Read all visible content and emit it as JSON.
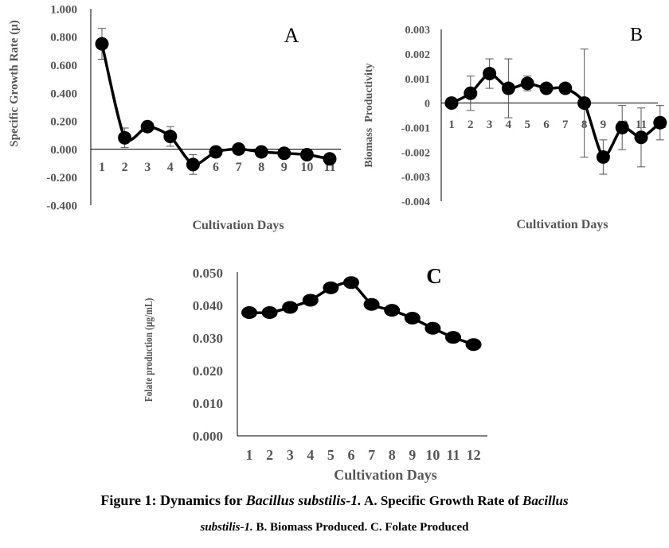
{
  "caption": {
    "prefix": "Figure 1: Dynamics for ",
    "organism": "Bacillus substilis-1.",
    "part_a": " A. Specific Growth Rate of ",
    "organism_line1": "Bacillus",
    "organism_line2": "substilis-1.",
    "part_bc": " B. Biomass Produced. C. Folate Produced"
  },
  "chart_data": [
    {
      "panel": "A",
      "type": "line",
      "title": "",
      "xlabel": "Cultivation Days",
      "ylabel": "Specific Growth Rate (μ)",
      "ylim": [
        -0.4,
        1.0
      ],
      "y_ticks": [
        "1.000",
        "0.800",
        "0.600",
        "0.400",
        "0.200",
        "0.000",
        "-0.200",
        "-0.400"
      ],
      "x": [
        "1",
        "2",
        "3",
        "4",
        "5",
        "6",
        "7",
        "8",
        "9",
        "10",
        "11"
      ],
      "values": [
        0.75,
        0.08,
        0.16,
        0.09,
        -0.11,
        -0.02,
        0.0,
        -0.02,
        -0.03,
        -0.04,
        -0.07
      ],
      "error": [
        0.11,
        0.07,
        0.02,
        0.07,
        0.07,
        0.02,
        0.03,
        0.02,
        0.02,
        0.02,
        0.02
      ],
      "grid": false,
      "marker": "circle",
      "color": "#000000"
    },
    {
      "panel": "B",
      "type": "line",
      "title": "",
      "xlabel": "Cultivation Days",
      "ylabel": "Biomass  Productivity",
      "ylim": [
        -0.004,
        0.003
      ],
      "y_ticks": [
        "0.003",
        "0.002",
        "0.001",
        "0",
        "-0.001",
        "-0.002",
        "-0.003",
        "-0.004"
      ],
      "x": [
        "1",
        "2",
        "3",
        "4",
        "5",
        "6",
        "7",
        "8",
        "9",
        "10",
        "11",
        "12"
      ],
      "values": [
        0.0,
        0.0004,
        0.0012,
        0.0006,
        0.0008,
        0.0006,
        0.0006,
        0.0,
        -0.0022,
        -0.001,
        -0.0014,
        -0.0008
      ],
      "error": [
        0.0,
        0.0007,
        0.0006,
        0.0012,
        0.0003,
        0.0001,
        0.0001,
        0.0022,
        0.0007,
        0.0009,
        0.0012,
        0.0007
      ],
      "grid": false,
      "marker": "circle",
      "color": "#000000"
    },
    {
      "panel": "C",
      "type": "line",
      "title": "",
      "xlabel": "Cultivation Days",
      "ylabel": "Folate production (μg/mL)",
      "ylim": [
        0.0,
        0.05
      ],
      "y_ticks": [
        "0.050",
        "0.040",
        "0.030",
        "0.020",
        "0.010",
        "0.000"
      ],
      "x": [
        "1",
        "2",
        "3",
        "4",
        "5",
        "6",
        "7",
        "8",
        "9",
        "10",
        "11",
        "12"
      ],
      "values": [
        0.0378,
        0.0378,
        0.0394,
        0.0416,
        0.0454,
        0.047,
        0.0403,
        0.0385,
        0.0361,
        0.033,
        0.0302,
        0.028
      ],
      "grid": false,
      "marker": "circle",
      "color": "#000000"
    }
  ]
}
